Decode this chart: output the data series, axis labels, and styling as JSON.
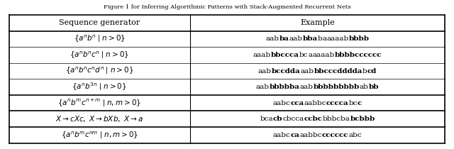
{
  "title": "Figure 1 for Inferring Algorithmic Patterns with Stack-Augmented Recurrent Nets",
  "headers": [
    "Sequence generator",
    "Example"
  ],
  "rows": [
    {
      "generator": "$\\{a^n b^n \\mid n > 0\\}$",
      "example_parts": [
        {
          "text": "aab",
          "bold": false
        },
        {
          "text": "ba",
          "bold": true
        },
        {
          "text": "aab",
          "bold": false
        },
        {
          "text": "bba",
          "bold": true
        },
        {
          "text": "b",
          "bold": false
        },
        {
          "text": "a",
          "bold": false
        },
        {
          "text": "aaaab",
          "bold": false
        },
        {
          "text": "bbbb",
          "bold": true
        }
      ],
      "separator_before": false
    },
    {
      "generator": "$\\{a^n b^n c^n \\mid n > 0\\}$",
      "example_parts": [
        {
          "text": "aaab",
          "bold": false
        },
        {
          "text": "bbccca",
          "bold": true
        },
        {
          "text": "bc",
          "bold": false
        },
        {
          "text": "a",
          "bold": false
        },
        {
          "text": "aaaab",
          "bold": false
        },
        {
          "text": "bbbbcccccc",
          "bold": true
        }
      ],
      "separator_before": false
    },
    {
      "generator": "$\\{a^n b^n c^n d^n \\mid n > 0\\}$",
      "example_parts": [
        {
          "text": "aab",
          "bold": false
        },
        {
          "text": "bccdda",
          "bold": true
        },
        {
          "text": "aab",
          "bold": false
        },
        {
          "text": "bbcccdddda",
          "bold": true
        },
        {
          "text": "b",
          "bold": false
        },
        {
          "text": "cd",
          "bold": true
        }
      ],
      "separator_before": false
    },
    {
      "generator": "$\\{a^n b^{3n} \\mid n > 0\\}$",
      "example_parts": [
        {
          "text": "aab",
          "bold": false
        },
        {
          "text": "bbbbba",
          "bold": true
        },
        {
          "text": "aab",
          "bold": false
        },
        {
          "text": "bbbbbbbbb",
          "bold": true
        },
        {
          "text": "ab",
          "bold": false
        },
        {
          "text": "bb",
          "bold": true
        }
      ],
      "separator_before": false
    },
    {
      "generator": "$\\{a^n b^m c^{n+m} \\mid n, m > 0\\}$",
      "example_parts": [
        {
          "text": "aabc",
          "bold": false
        },
        {
          "text": "cca",
          "bold": true
        },
        {
          "text": "aabbc",
          "bold": false
        },
        {
          "text": "cccca",
          "bold": true
        },
        {
          "text": "bc",
          "bold": false
        },
        {
          "text": "c",
          "bold": true
        }
      ],
      "separator_before": true
    },
    {
      "generator": "$X \\to cXc,\\ X \\to bXb,\\ X \\to a$",
      "example_parts": [
        {
          "text": "bca",
          "bold": false
        },
        {
          "text": "cb",
          "bold": true
        },
        {
          "text": "cbcca",
          "bold": false
        },
        {
          "text": "ccbc",
          "bold": true
        },
        {
          "text": "bbbcba",
          "bold": false
        },
        {
          "text": "bcbbb",
          "bold": true
        }
      ],
      "separator_before": true
    },
    {
      "generator": "$\\{a^n b^m c^{nm} \\mid n, m > 0\\}$",
      "example_parts": [
        {
          "text": "aabc",
          "bold": false
        },
        {
          "text": "ca",
          "bold": true
        },
        {
          "text": "aabbc",
          "bold": false
        },
        {
          "text": "cccccc",
          "bold": true
        },
        {
          "text": "abc",
          "bold": false
        }
      ],
      "separator_before": true
    }
  ],
  "col_split": 0.415,
  "bg_color": "#ffffff",
  "border_color": "#000000",
  "text_color": "#000000",
  "fontsize": 8.0
}
